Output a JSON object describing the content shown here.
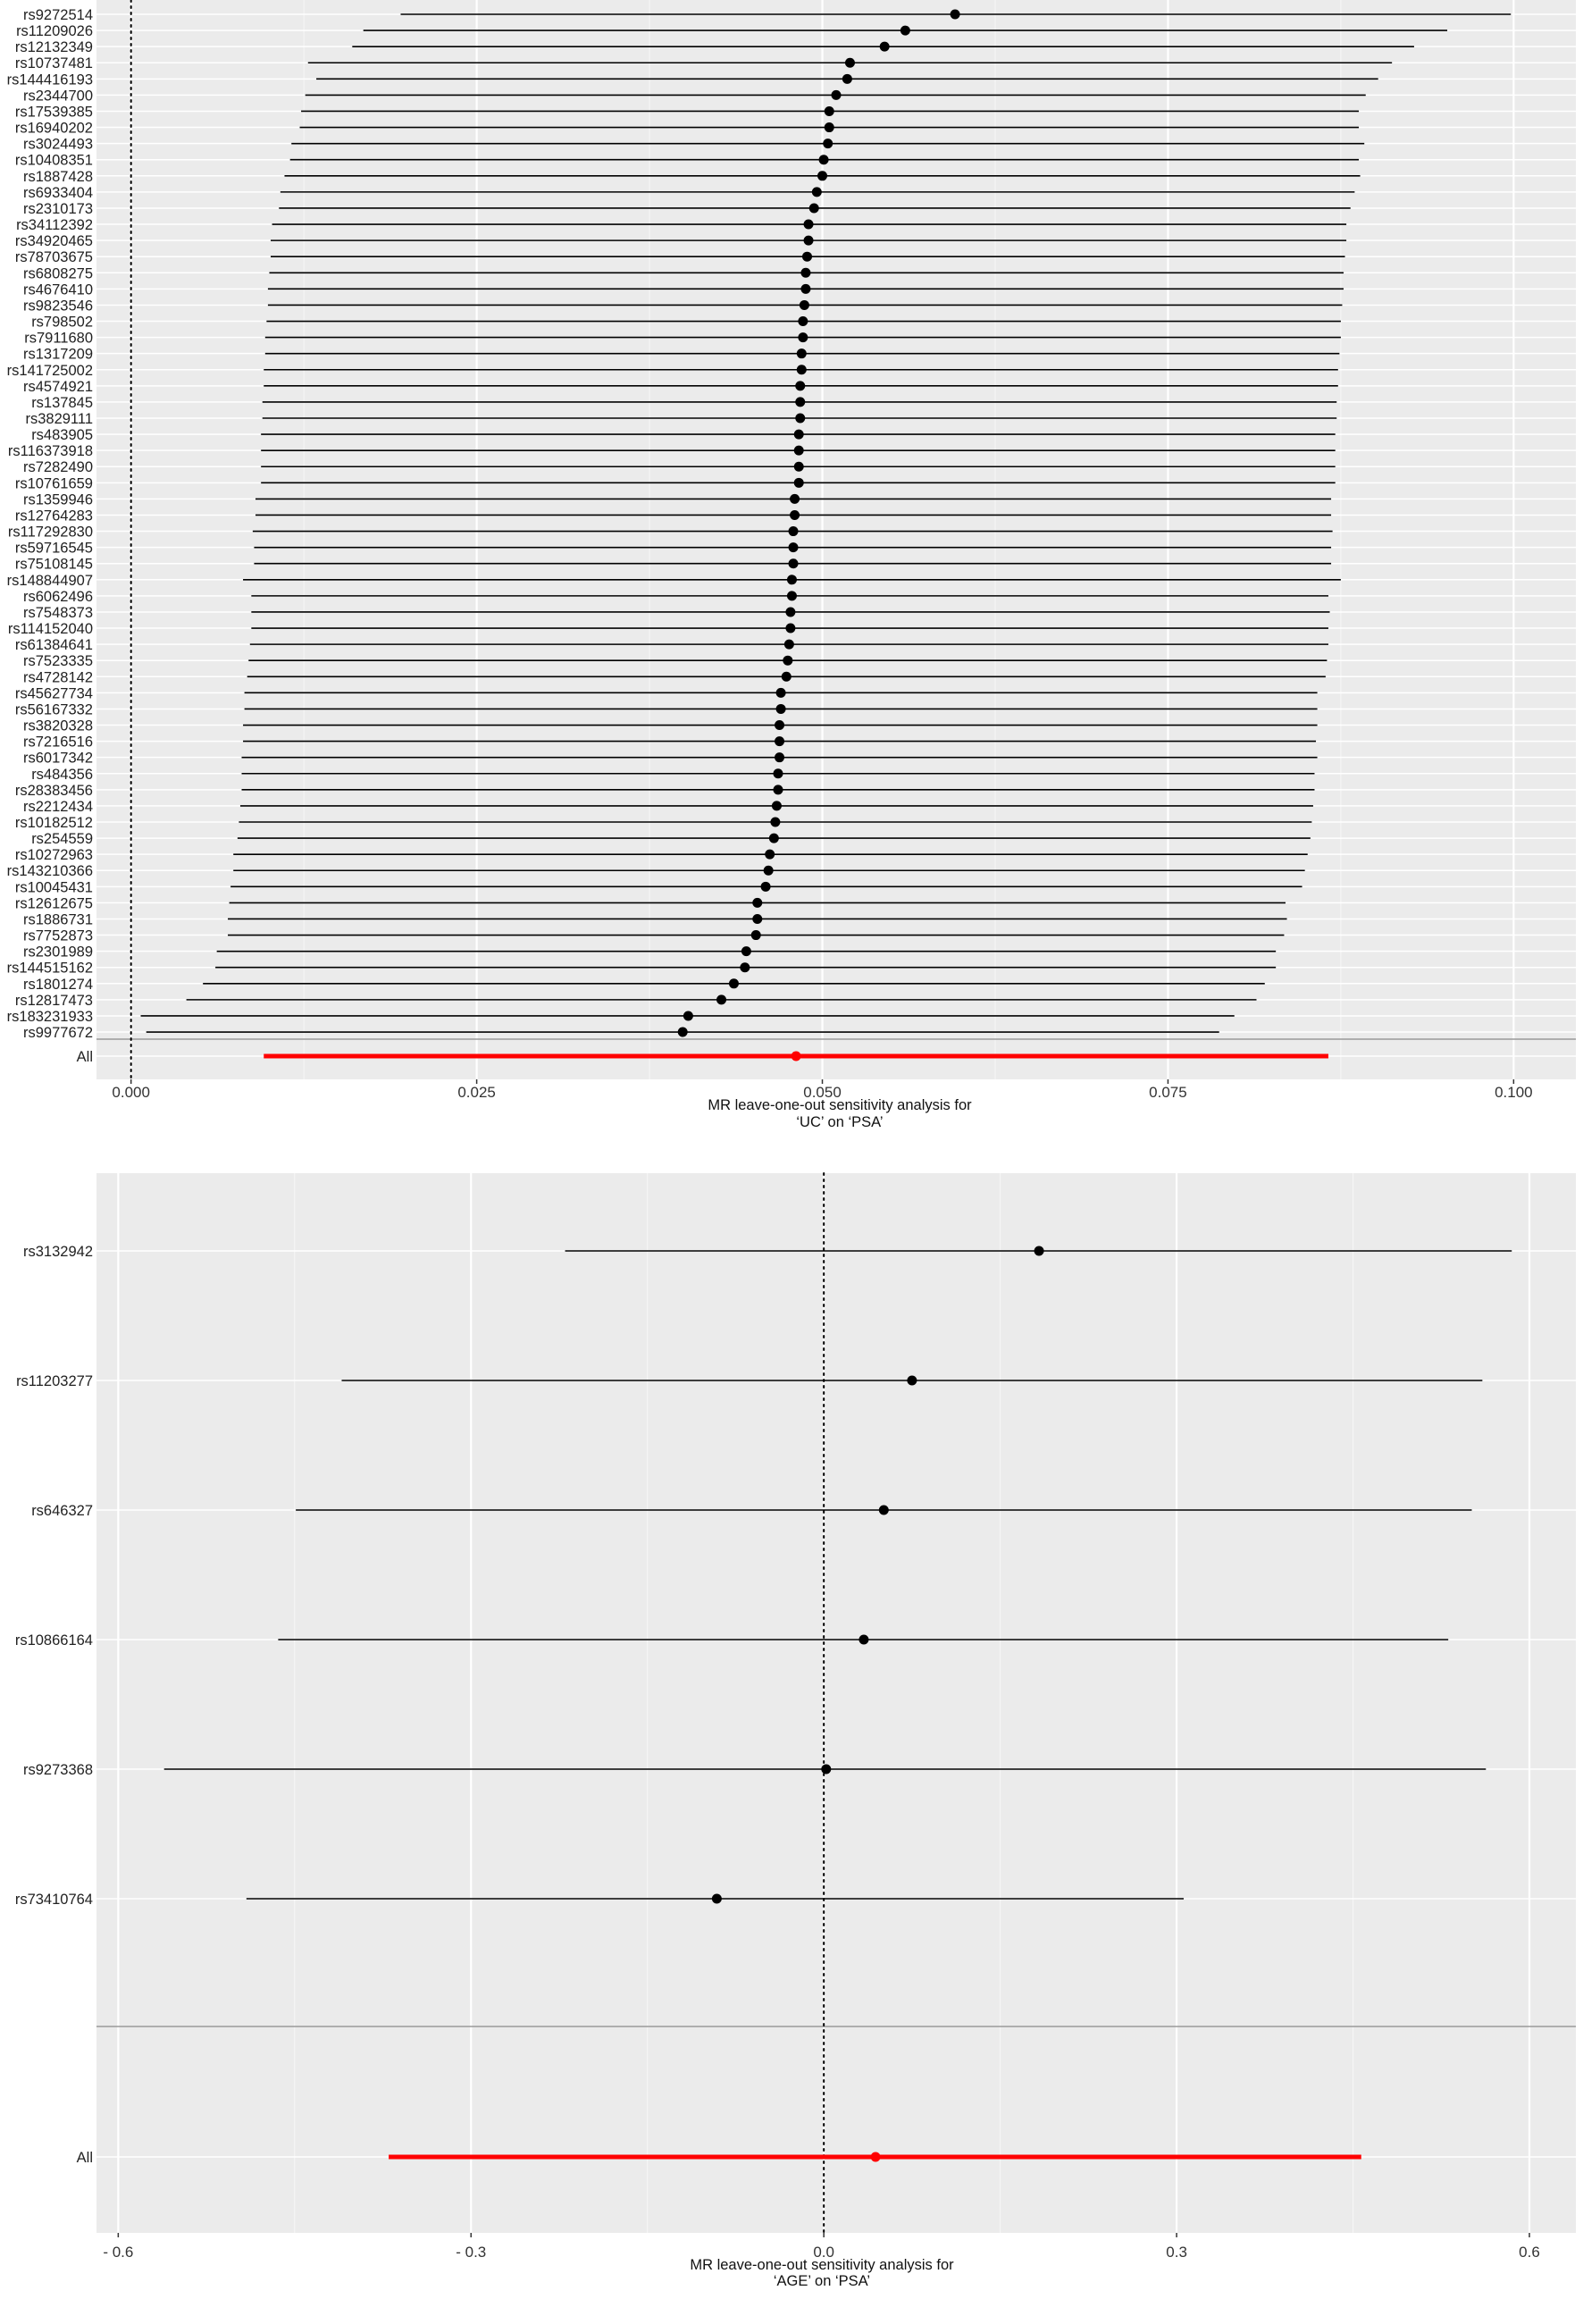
{
  "chart_data": [
    {
      "type": "forest",
      "xlabel_line1": "MR leave-one-out sensitivity analysis for",
      "xlabel_line2": "‘UC’ on ‘PSA’",
      "xticks": [
        0.0,
        0.025,
        0.05,
        0.075,
        0.1
      ],
      "xtick_labels": [
        "0.000",
        "0.025",
        "0.050",
        "0.075",
        "0.100"
      ],
      "xlim": [
        -0.0025,
        0.1045
      ],
      "reference_line": 0,
      "grid": true,
      "line_color": "#000000",
      "overall_color": "#ff0000",
      "background": "#ebebeb",
      "rows": [
        {
          "label": "rs9272514",
          "b": 0.0596,
          "lo": 0.0195,
          "hi": 0.0998
        },
        {
          "label": "rs11209026",
          "b": 0.056,
          "lo": 0.0168,
          "hi": 0.0952
        },
        {
          "label": "rs12132349",
          "b": 0.0545,
          "lo": 0.016,
          "hi": 0.0928
        },
        {
          "label": "rs10737481",
          "b": 0.052,
          "lo": 0.0128,
          "hi": 0.0912
        },
        {
          "label": "rs144416193",
          "b": 0.0518,
          "lo": 0.0134,
          "hi": 0.0902
        },
        {
          "label": "rs2344700",
          "b": 0.051,
          "lo": 0.0126,
          "hi": 0.0893
        },
        {
          "label": "rs17539385",
          "b": 0.0505,
          "lo": 0.0123,
          "hi": 0.0888
        },
        {
          "label": "rs16940202",
          "b": 0.0505,
          "lo": 0.0122,
          "hi": 0.0888
        },
        {
          "label": "rs3024493",
          "b": 0.0504,
          "lo": 0.0116,
          "hi": 0.0892
        },
        {
          "label": "rs10408351",
          "b": 0.0501,
          "lo": 0.0115,
          "hi": 0.0888
        },
        {
          "label": "rs1887428",
          "b": 0.05,
          "lo": 0.0111,
          "hi": 0.0889
        },
        {
          "label": "rs6933404",
          "b": 0.0496,
          "lo": 0.0108,
          "hi": 0.0885
        },
        {
          "label": "rs2310173",
          "b": 0.0494,
          "lo": 0.0107,
          "hi": 0.0882
        },
        {
          "label": "rs34112392",
          "b": 0.049,
          "lo": 0.0102,
          "hi": 0.0879
        },
        {
          "label": "rs34920465",
          "b": 0.049,
          "lo": 0.0101,
          "hi": 0.0879
        },
        {
          "label": "rs78703675",
          "b": 0.0489,
          "lo": 0.0101,
          "hi": 0.0878
        },
        {
          "label": "rs6808275",
          "b": 0.0488,
          "lo": 0.01,
          "hi": 0.0877
        },
        {
          "label": "rs4676410",
          "b": 0.0488,
          "lo": 0.0099,
          "hi": 0.0877
        },
        {
          "label": "rs9823546",
          "b": 0.0487,
          "lo": 0.0099,
          "hi": 0.0876
        },
        {
          "label": "rs798502",
          "b": 0.0486,
          "lo": 0.0098,
          "hi": 0.0875
        },
        {
          "label": "rs7911680",
          "b": 0.0486,
          "lo": 0.0097,
          "hi": 0.0875
        },
        {
          "label": "rs1317209",
          "b": 0.0485,
          "lo": 0.0097,
          "hi": 0.0874
        },
        {
          "label": "rs141725002",
          "b": 0.0485,
          "lo": 0.0096,
          "hi": 0.0873
        },
        {
          "label": "rs4574921",
          "b": 0.0484,
          "lo": 0.0096,
          "hi": 0.0873
        },
        {
          "label": "rs137845",
          "b": 0.0484,
          "lo": 0.0095,
          "hi": 0.0872
        },
        {
          "label": "rs3829111",
          "b": 0.0484,
          "lo": 0.0095,
          "hi": 0.0872
        },
        {
          "label": "rs483905",
          "b": 0.0483,
          "lo": 0.0094,
          "hi": 0.0871
        },
        {
          "label": "rs116373918",
          "b": 0.0483,
          "lo": 0.0094,
          "hi": 0.0871
        },
        {
          "label": "rs7282490",
          "b": 0.0483,
          "lo": 0.0094,
          "hi": 0.0871
        },
        {
          "label": "rs10761659",
          "b": 0.0483,
          "lo": 0.0094,
          "hi": 0.0871
        },
        {
          "label": "rs1359946",
          "b": 0.048,
          "lo": 0.009,
          "hi": 0.0868
        },
        {
          "label": "rs12764283",
          "b": 0.048,
          "lo": 0.009,
          "hi": 0.0868
        },
        {
          "label": "rs117292830",
          "b": 0.0479,
          "lo": 0.0088,
          "hi": 0.0869
        },
        {
          "label": "rs59716545",
          "b": 0.0479,
          "lo": 0.0089,
          "hi": 0.0868
        },
        {
          "label": "rs75108145",
          "b": 0.0479,
          "lo": 0.0089,
          "hi": 0.0868
        },
        {
          "label": "rs148844907",
          "b": 0.0478,
          "lo": 0.0081,
          "hi": 0.0875
        },
        {
          "label": "rs6062496",
          "b": 0.0478,
          "lo": 0.0087,
          "hi": 0.0866
        },
        {
          "label": "rs7548373",
          "b": 0.0477,
          "lo": 0.0087,
          "hi": 0.0867
        },
        {
          "label": "rs114152040",
          "b": 0.0477,
          "lo": 0.0087,
          "hi": 0.0866
        },
        {
          "label": "rs61384641",
          "b": 0.0476,
          "lo": 0.0086,
          "hi": 0.0866
        },
        {
          "label": "rs7523335",
          "b": 0.0475,
          "lo": 0.0085,
          "hi": 0.0865
        },
        {
          "label": "rs4728142",
          "b": 0.0474,
          "lo": 0.0084,
          "hi": 0.0864
        },
        {
          "label": "rs45627734",
          "b": 0.047,
          "lo": 0.0082,
          "hi": 0.0858
        },
        {
          "label": "rs56167332",
          "b": 0.047,
          "lo": 0.0082,
          "hi": 0.0858
        },
        {
          "label": "rs3820328",
          "b": 0.0469,
          "lo": 0.0081,
          "hi": 0.0858
        },
        {
          "label": "rs7216516",
          "b": 0.0469,
          "lo": 0.0081,
          "hi": 0.0857
        },
        {
          "label": "rs6017342",
          "b": 0.0469,
          "lo": 0.008,
          "hi": 0.0858
        },
        {
          "label": "rs484356",
          "b": 0.0468,
          "lo": 0.008,
          "hi": 0.0856
        },
        {
          "label": "rs28383456",
          "b": 0.0468,
          "lo": 0.008,
          "hi": 0.0856
        },
        {
          "label": "rs2212434",
          "b": 0.0467,
          "lo": 0.0079,
          "hi": 0.0855
        },
        {
          "label": "rs10182512",
          "b": 0.0466,
          "lo": 0.0078,
          "hi": 0.0854
        },
        {
          "label": "rs254559",
          "b": 0.0465,
          "lo": 0.0077,
          "hi": 0.0853
        },
        {
          "label": "rs10272963",
          "b": 0.0462,
          "lo": 0.0074,
          "hi": 0.0851
        },
        {
          "label": "rs143210366",
          "b": 0.0461,
          "lo": 0.0074,
          "hi": 0.0849
        },
        {
          "label": "rs10045431",
          "b": 0.0459,
          "lo": 0.0072,
          "hi": 0.0847
        },
        {
          "label": "rs12612675",
          "b": 0.0453,
          "lo": 0.0071,
          "hi": 0.0835
        },
        {
          "label": "rs1886731",
          "b": 0.0453,
          "lo": 0.007,
          "hi": 0.0836
        },
        {
          "label": "rs7752873",
          "b": 0.0452,
          "lo": 0.007,
          "hi": 0.0834
        },
        {
          "label": "rs2301989",
          "b": 0.0445,
          "lo": 0.0062,
          "hi": 0.0828
        },
        {
          "label": "rs144515162",
          "b": 0.0444,
          "lo": 0.0061,
          "hi": 0.0828
        },
        {
          "label": "rs1801274",
          "b": 0.0436,
          "lo": 0.0052,
          "hi": 0.082
        },
        {
          "label": "rs12817473",
          "b": 0.0427,
          "lo": 0.004,
          "hi": 0.0814
        },
        {
          "label": "rs183231933",
          "b": 0.0403,
          "lo": 0.0007,
          "hi": 0.0798
        },
        {
          "label": "rs9977672",
          "b": 0.0399,
          "lo": 0.0011,
          "hi": 0.0787
        }
      ],
      "overall": {
        "label": "All",
        "b": 0.0481,
        "lo": 0.0096,
        "hi": 0.0866
      }
    },
    {
      "type": "forest",
      "xlabel_line1": "MR leave-one-out sensitivity analysis for",
      "xlabel_line2": "‘AGE’ on ‘PSA’",
      "xticks": [
        -0.6,
        -0.3,
        0.0,
        0.3,
        0.6
      ],
      "xtick_labels": [
        "- 0.6",
        "- 0.3",
        "0.0",
        "0.3",
        "0.6"
      ],
      "xlim": [
        -0.6185,
        0.6395
      ],
      "reference_line": 0,
      "grid": true,
      "line_color": "#000000",
      "overall_color": "#ff0000",
      "background": "#ebebeb",
      "rows": [
        {
          "label": "rs3132942",
          "b": 0.183,
          "lo": -0.22,
          "hi": 0.585
        },
        {
          "label": "rs11203277",
          "b": 0.075,
          "lo": -0.41,
          "hi": 0.56
        },
        {
          "label": "rs646327",
          "b": 0.051,
          "lo": -0.449,
          "hi": 0.551
        },
        {
          "label": "rs10866164",
          "b": 0.034,
          "lo": -0.464,
          "hi": 0.531
        },
        {
          "label": "rs9273368",
          "b": 0.002,
          "lo": -0.561,
          "hi": 0.563
        },
        {
          "label": "rs73410764",
          "b": -0.091,
          "lo": -0.491,
          "hi": 0.306
        }
      ],
      "overall": {
        "label": "All",
        "b": 0.044,
        "lo": -0.37,
        "hi": 0.457
      }
    }
  ]
}
